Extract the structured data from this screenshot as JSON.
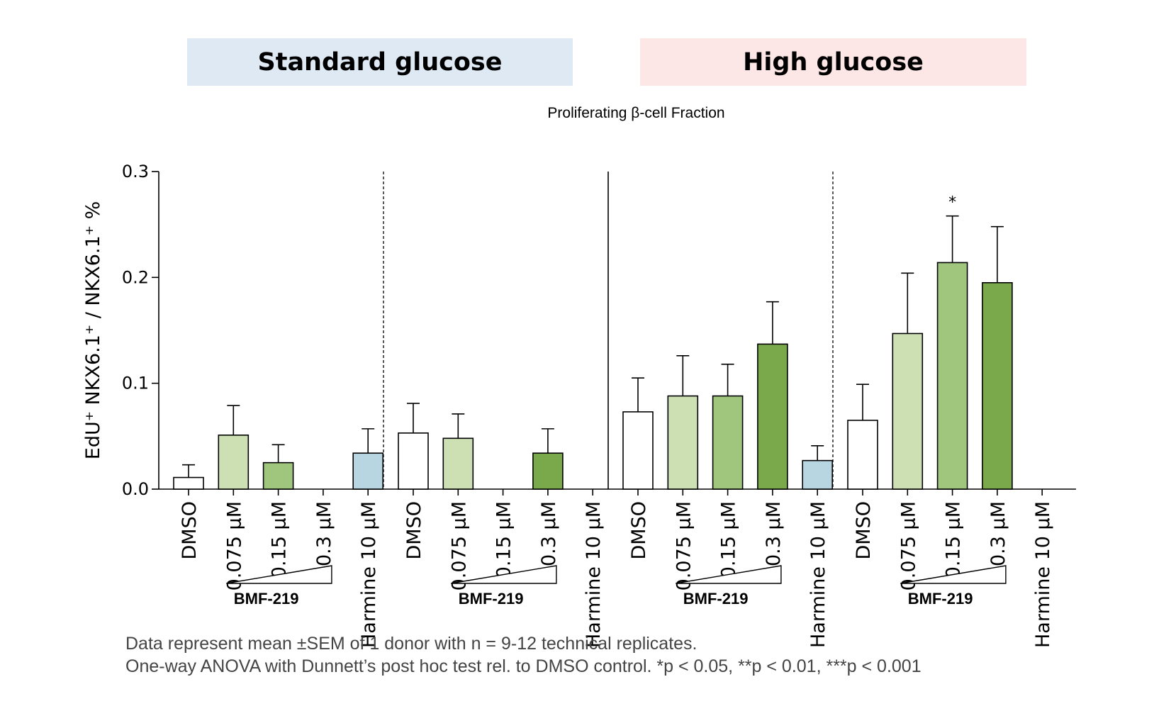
{
  "banners": {
    "standard": "Standard glucose",
    "high": "High glucose",
    "standard_color": "#dfe9f4",
    "high_color": "#fde6e6"
  },
  "chart_data": {
    "type": "bar",
    "title": "Proliferating β-cell Fraction",
    "ylabel": "EdU⁺ NKX6.1⁺ / NKX6.1⁺ %",
    "xlabel": "",
    "ylim": [
      0,
      0.3
    ],
    "yticks": [
      "0.0",
      "0.1",
      "0.2",
      "0.3"
    ],
    "ytick_values": [
      0,
      0.1,
      0.2,
      0.3
    ],
    "categories": [
      "DMSO",
      "0.075 µM",
      "0.15 µM",
      "0.3 µM",
      "Harmine 10 µM"
    ],
    "group_label": "BMF-219",
    "colors": {
      "dmso": "#ffffff",
      "bmf_low": "#cce0b4",
      "bmf_mid": "#a0c67e",
      "bmf_high": "#79a94b",
      "harmine": "#b8d6e2"
    },
    "groups": [
      {
        "condition": "Standard glucose",
        "values": [
          0.011,
          0.051,
          0.025,
          null,
          0.034
        ],
        "sem": [
          0.012,
          0.028,
          0.017,
          null,
          0.023
        ],
        "sig": [
          "",
          "",
          "",
          "",
          ""
        ]
      },
      {
        "condition": "Standard glucose",
        "values": [
          0.053,
          0.048,
          null,
          0.034,
          null
        ],
        "sem": [
          0.028,
          0.023,
          null,
          0.023,
          null
        ],
        "sig": [
          "",
          "",
          "",
          "",
          ""
        ]
      },
      {
        "condition": "High glucose",
        "values": [
          0.073,
          0.088,
          0.088,
          0.137,
          0.027
        ],
        "sem": [
          0.032,
          0.038,
          0.03,
          0.04,
          0.014
        ],
        "sig": [
          "",
          "",
          "",
          "",
          ""
        ]
      },
      {
        "condition": "High glucose",
        "values": [
          0.065,
          0.147,
          0.214,
          0.195,
          null
        ],
        "sem": [
          0.034,
          0.057,
          0.044,
          0.053,
          null
        ],
        "sig": [
          "",
          "",
          "*",
          "",
          ""
        ]
      }
    ],
    "group_dividers": [
      "dotted",
      "solid",
      "dotted"
    ]
  },
  "footnotes": [
    "Data represent mean ±SEM of 1 donor with n = 9-12 technical replicates.",
    "One-way ANOVA with Dunnett’s post hoc test rel. to DMSO control. *p < 0.05, **p < 0.01, ***p < 0.001"
  ]
}
